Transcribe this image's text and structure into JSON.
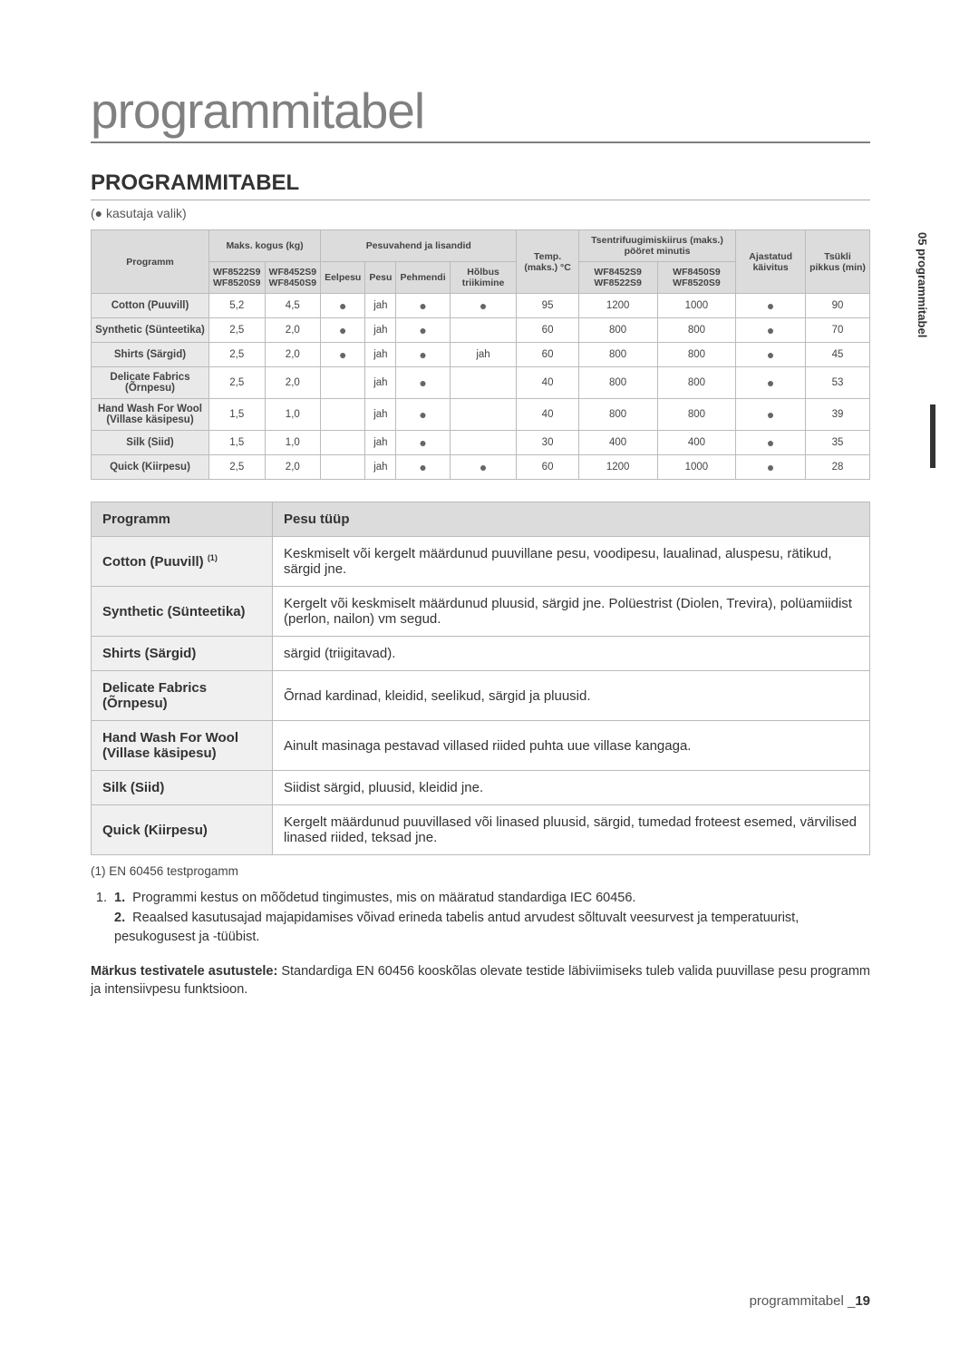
{
  "sideTab": {
    "text": "05  programmitabel"
  },
  "title": "programmitabel",
  "section": "PROGRAMMITABEL",
  "legendNote": "(● kasutaja valik)",
  "table1": {
    "header": {
      "programm": "Programm",
      "maksKogus": "Maks. kogus (kg)",
      "maksCol1": "WF8522S9\nWF8520S9",
      "maksCol2": "WF8452S9\nWF8450S9",
      "pesuvahend": "Pesuvahend ja lisandid",
      "eelpesu": "Eelpesu",
      "pesu": "Pesu",
      "pehmendi": "Pehmendi",
      "holbus": "Hõlbus triikimine",
      "temp": "Temp. (maks.) °C",
      "tsentri": "Tsentrifuugimiskiirus (maks.) pööret minutis",
      "tsentriCol1": "WF8452S9\nWF8522S9",
      "tsentriCol2": "WF8450S9\nWF8520S9",
      "ajastatud": "Ajastatud käivitus",
      "tsukli": "Tsükli pikkus (min)"
    },
    "rows": [
      {
        "name": "Cotton (Puuvill)",
        "c1": "5,2",
        "c2": "4,5",
        "eel": "●",
        "pesu": "jah",
        "peh": "●",
        "hol": "●",
        "temp": "95",
        "s1": "1200",
        "s2": "1000",
        "aj": "●",
        "ts": "90"
      },
      {
        "name": "Synthetic (Sünteetika)",
        "c1": "2,5",
        "c2": "2,0",
        "eel": "●",
        "pesu": "jah",
        "peh": "●",
        "hol": "",
        "temp": "60",
        "s1": "800",
        "s2": "800",
        "aj": "●",
        "ts": "70"
      },
      {
        "name": "Shirts (Särgid)",
        "c1": "2,5",
        "c2": "2,0",
        "eel": "●",
        "pesu": "jah",
        "peh": "●",
        "hol": "jah",
        "temp": "60",
        "s1": "800",
        "s2": "800",
        "aj": "●",
        "ts": "45"
      },
      {
        "name": "Delicate Fabrics (Õrnpesu)",
        "c1": "2,5",
        "c2": "2,0",
        "eel": "",
        "pesu": "jah",
        "peh": "●",
        "hol": "",
        "temp": "40",
        "s1": "800",
        "s2": "800",
        "aj": "●",
        "ts": "53"
      },
      {
        "name": "Hand Wash For Wool (Villase käsipesu)",
        "c1": "1,5",
        "c2": "1,0",
        "eel": "",
        "pesu": "jah",
        "peh": "●",
        "hol": "",
        "temp": "40",
        "s1": "800",
        "s2": "800",
        "aj": "●",
        "ts": "39"
      },
      {
        "name": "Silk (Siid)",
        "c1": "1,5",
        "c2": "1,0",
        "eel": "",
        "pesu": "jah",
        "peh": "●",
        "hol": "",
        "temp": "30",
        "s1": "400",
        "s2": "400",
        "aj": "●",
        "ts": "35"
      },
      {
        "name": "Quick (Kiirpesu)",
        "c1": "2,5",
        "c2": "2,0",
        "eel": "",
        "pesu": "jah",
        "peh": "●",
        "hol": "●",
        "temp": "60",
        "s1": "1200",
        "s2": "1000",
        "aj": "●",
        "ts": "28"
      }
    ]
  },
  "table2": {
    "header": {
      "programm": "Programm",
      "pesuTuup": "Pesu tüüp"
    },
    "rows": [
      {
        "name": "Cotton (Puuvill)",
        "sup": "(1)",
        "desc": "Keskmiselt või kergelt määrdunud puuvillane pesu, voodipesu, laualinad, aluspesu, rätikud, särgid jne."
      },
      {
        "name": "Synthetic (Sünteetika)",
        "sup": "",
        "desc": "Kergelt või keskmiselt määrdunud pluusid, särgid jne. Polüestrist (Diolen, Trevira), polüamiidist (perlon, nailon) vm segud."
      },
      {
        "name": "Shirts (Särgid)",
        "sup": "",
        "desc": "särgid (triigitavad)."
      },
      {
        "name": "Delicate Fabrics (Õrnpesu)",
        "sup": "",
        "desc": "Õrnad kardinad, kleidid, seelikud, särgid ja pluusid."
      },
      {
        "name": "Hand Wash For Wool (Villase käsipesu)",
        "sup": "",
        "desc": "Ainult masinaga pestavad villased riided puhta uue villase kangaga."
      },
      {
        "name": "Silk (Siid)",
        "sup": "",
        "desc": "Siidist särgid, pluusid, kleidid jne."
      },
      {
        "name": "Quick (Kiirpesu)",
        "sup": "",
        "desc": "Kergelt määrdunud puuvillased või linased pluusid, särgid, tumedad froteest esemed, värvilised linased riided, teksad jne."
      }
    ]
  },
  "footnote1": "(1) EN 60456 testprogamm",
  "listItems": [
    "Programmi kestus on mõõdetud tingimustes, mis on määratud standardiga IEC 60456.",
    "Reaalsed kasutusajad majapidamises võivad erineda tabelis antud arvudest sõltuvalt veesurvest ja temperatuurist, pesukogusest ja -tüübist."
  ],
  "bodyNoteBold": "Märkus testivatele asutustele:",
  "bodyNoteText": " Standardiga EN 60456 kooskõlas olevate testide läbiviimiseks tuleb valida puuvillase pesu programm ja intensiivpesu funktsioon.",
  "footer": {
    "label": "programmitabel _",
    "page": "19"
  }
}
